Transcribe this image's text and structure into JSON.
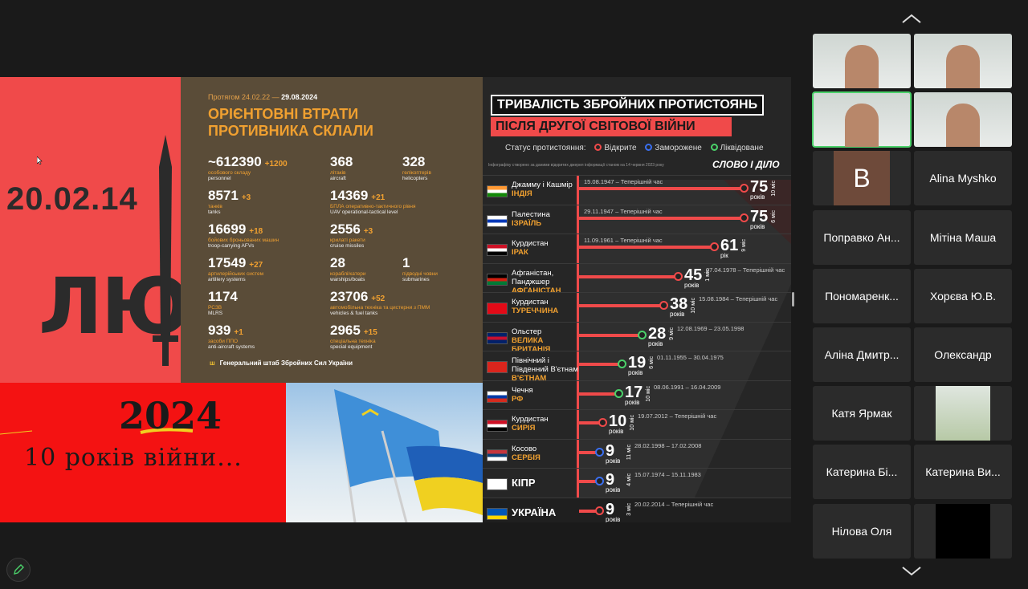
{
  "slide": {
    "left_panel": {
      "date": "20.02.14",
      "word": "ЛЮТ"
    },
    "stats": {
      "period_prefix": "Протягом 24.02.22 —",
      "period_end": "29.08.2024",
      "title": "ОРІЄНТОВНІ ВТРАТИ ПРОТИВНИКА СКЛАЛИ",
      "items": [
        {
          "num": "~612390",
          "inc": "+1200",
          "ua": "особового складу",
          "en": "personnel"
        },
        {
          "num": "368",
          "inc": "",
          "ua": "літаків",
          "en": "aircraft"
        },
        {
          "num": "328",
          "inc": "",
          "ua": "гелікоптерів",
          "en": "helicopters"
        },
        {
          "num": "8571",
          "inc": "+3",
          "ua": "танків",
          "en": "tanks"
        },
        {
          "num": "14369",
          "inc": "+21",
          "ua": "БПЛА оперативно-тактичного рівня",
          "en": "UAV operational-tactical level"
        },
        {
          "num": "16699",
          "inc": "+18",
          "ua": "бойових броньованих машин",
          "en": "troop-carrying AFVs"
        },
        {
          "num": "2556",
          "inc": "+3",
          "ua": "крилаті ракети",
          "en": "cruise missiles"
        },
        {
          "num": "17549",
          "inc": "+27",
          "ua": "артилерійських систем",
          "en": "artillery systems"
        },
        {
          "num": "28",
          "inc": "",
          "ua": "кораблі/катери",
          "en": "warships/boats"
        },
        {
          "num": "1",
          "inc": "",
          "ua": "підводні човни",
          "en": "submarines"
        },
        {
          "num": "1174",
          "inc": "",
          "ua": "РСЗВ",
          "en": "MLRS"
        },
        {
          "num": "23706",
          "inc": "+52",
          "ua": "автомобільна техніка та цистерни з ПММ",
          "en": "vehicles & fuel tanks"
        },
        {
          "num": "939",
          "inc": "+1",
          "ua": "засоби ППО",
          "en": "anti-aircraft systems"
        },
        {
          "num": "2965",
          "inc": "+15",
          "ua": "спеціальна техніка",
          "en": "special equipment"
        }
      ],
      "footer": "Генеральний штаб Збройних Сил України"
    },
    "war_panel": {
      "year": "2024",
      "text": "10 років війни..."
    },
    "infographic": {
      "title_line1": "ТРИВАЛІСТЬ ЗБРОЙНИХ ПРОТИСТОЯНЬ",
      "title_line2": "ПІСЛЯ ДРУГОЇ СВІТОВОЇ ВІЙНИ",
      "status_label": "Статус протистояння:",
      "status_open": "Відкрите",
      "status_frozen": "Заморожене",
      "status_closed": "Ліквідоване",
      "note": "Інфографіку створено за даними відкритих джерел інформації станом на 14 червня 2023 року",
      "brand": "СЛОВО І ДІЛО",
      "rows": [
        {
          "region": "Джамму і Кашмір",
          "country": "ІНДІЯ",
          "dates": "15.08.1947 – Теперішній час",
          "years": "75",
          "unit": "років",
          "months": "10 міс",
          "status": "open",
          "fill": 1.0,
          "flag": [
            "#ff9933",
            "#ffffff",
            "#138808"
          ]
        },
        {
          "region": "Палестина",
          "country": "ІЗРАЇЛЬ",
          "dates": "29.11.1947 – Теперішній час",
          "years": "75",
          "unit": "років",
          "months": "6 міс",
          "status": "open",
          "fill": 1.0,
          "flag": [
            "#ffffff",
            "#0038b8",
            "#ffffff"
          ]
        },
        {
          "region": "Курдистан",
          "country": "ІРАК",
          "dates": "11.09.1961 – Теперішній час",
          "years": "61",
          "unit": "рік",
          "months": "9 міс",
          "status": "open",
          "fill": 0.82,
          "flag": [
            "#ce1126",
            "#ffffff",
            "#000000"
          ]
        },
        {
          "region": "Афганістан, Панджшер",
          "country": "АФГАНІСТАН",
          "dates": "27.04.1978 – Теперішній час",
          "years": "45",
          "unit": "років",
          "months": "1 міс",
          "status": "open",
          "fill": 0.6,
          "flag": [
            "#000000",
            "#d32011",
            "#007a36"
          ]
        },
        {
          "region": "Курдистан",
          "country": "ТУРЕЧЧИНА",
          "dates": "15.08.1984 – Теперішній час",
          "years": "38",
          "unit": "років",
          "months": "10 міс",
          "status": "open",
          "fill": 0.51,
          "flag": [
            "#e30a17",
            "#e30a17",
            "#e30a17"
          ]
        },
        {
          "region": "Ольстер",
          "country": "ВЕЛИКА БРИТАНІЯ",
          "dates": "12.08.1969 – 23.05.1998",
          "years": "28",
          "unit": "років",
          "months": "9 міс",
          "status": "closed",
          "fill": 0.38,
          "flag": [
            "#012169",
            "#c8102e",
            "#012169"
          ]
        },
        {
          "region": "Північний і Південний В'єтнам",
          "country": "В'ЄТНАМ",
          "dates": "01.11.1955 – 30.04.1975",
          "years": "19",
          "unit": "років",
          "months": "6 міс",
          "status": "closed",
          "fill": 0.26,
          "flag": [
            "#da251d",
            "#da251d",
            "#da251d"
          ]
        },
        {
          "region": "Чечня",
          "country": "РФ",
          "dates": "08.06.1991 – 16.04.2009",
          "years": "17",
          "unit": "років",
          "months": "10 міс",
          "status": "closed",
          "fill": 0.24,
          "flag": [
            "#ffffff",
            "#0039a6",
            "#d52b1e"
          ]
        },
        {
          "region": "Курдистан",
          "country": "СИРІЯ",
          "dates": "19.07.2012 – Теперішній час",
          "years": "10",
          "unit": "років",
          "months": "10 міс",
          "status": "open",
          "fill": 0.14,
          "flag": [
            "#ce1126",
            "#ffffff",
            "#000000"
          ]
        },
        {
          "region": "Косово",
          "country": "СЕРБІЯ",
          "dates": "28.02.1998 – 17.02.2008",
          "years": "9",
          "unit": "років",
          "months": "11 міс",
          "status": "frozen",
          "fill": 0.12,
          "flag": [
            "#c6363c",
            "#0c4076",
            "#ffffff"
          ]
        },
        {
          "region": "",
          "country": "КІПР",
          "dates": "15.07.1974 – 15.11.1983",
          "years": "9",
          "unit": "років",
          "months": "4 міс",
          "status": "frozen",
          "fill": 0.12,
          "flag": [
            "#ffffff",
            "#ffffff",
            "#ffffff"
          ]
        },
        {
          "region": "",
          "country": "УКРАЇНА",
          "dates": "20.02.2014 – Теперішній час",
          "years": "9",
          "unit": "років",
          "months": "3 міс",
          "status": "open",
          "fill": 0.12,
          "flag": [
            "#0057b7",
            "#0057b7",
            "#ffd700"
          ]
        }
      ]
    }
  },
  "gallery": {
    "tiles": [
      {
        "name": "",
        "type": "video",
        "active": false
      },
      {
        "name": "",
        "type": "video",
        "active": false
      },
      {
        "name": "",
        "type": "video",
        "active": true
      },
      {
        "name": "",
        "type": "video",
        "active": false
      },
      {
        "name": "B",
        "type": "avatar",
        "active": false
      },
      {
        "name": "Alina Myshko",
        "type": "name",
        "active": false
      },
      {
        "name": "Поправко Ан...",
        "type": "name",
        "active": false
      },
      {
        "name": "Мітіна Маша",
        "type": "name",
        "active": false
      },
      {
        "name": "Пономаренк...",
        "type": "name",
        "active": false
      },
      {
        "name": "Хорєва Ю.В.",
        "type": "name",
        "active": false
      },
      {
        "name": "Аліна Дмитр...",
        "type": "name",
        "active": false
      },
      {
        "name": "Олександр",
        "type": "name",
        "active": false
      },
      {
        "name": "Катя Ярмак",
        "type": "name",
        "active": false
      },
      {
        "name": "",
        "type": "photo",
        "active": false
      },
      {
        "name": "Катерина Бі...",
        "type": "name",
        "active": false
      },
      {
        "name": "Катерина Ви...",
        "type": "name",
        "active": false
      },
      {
        "name": "Нілова Оля",
        "type": "name",
        "active": false
      },
      {
        "name": "",
        "type": "black",
        "active": false
      }
    ]
  },
  "colors": {
    "open": "#f04a4a",
    "frozen": "#3a6ff0",
    "closed": "#4bd16a",
    "accent": "#f0a030",
    "active_speaker": "#4bd16a"
  },
  "icons": {
    "pencil": "pencil-icon",
    "scroll_up": "chevron-up-icon",
    "scroll_down": "chevron-down-icon"
  }
}
